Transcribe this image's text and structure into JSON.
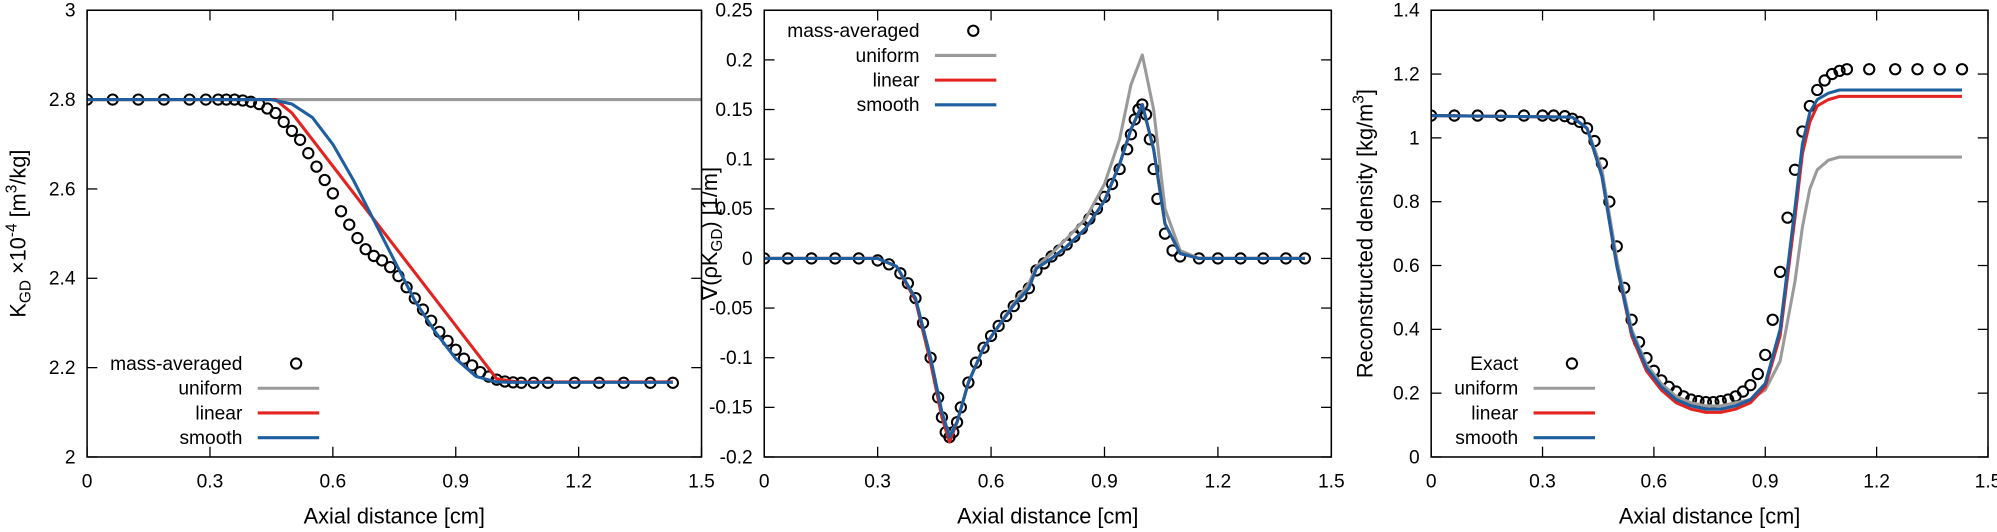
{
  "chart_data": [
    {
      "type": "line",
      "xlabel": "Axial distance [cm]",
      "ylabel": [
        {
          "text": "K"
        },
        {
          "text": "GD",
          "shift": "sub"
        },
        {
          "text": " ×10"
        },
        {
          "text": "-4",
          "shift": "sup"
        },
        {
          "text": " [m"
        },
        {
          "text": "3",
          "shift": "sup"
        },
        {
          "text": "/kg]"
        }
      ],
      "xlim": [
        0,
        1.5
      ],
      "xticks": [
        0,
        0.3,
        0.6,
        0.9,
        1.2,
        1.5
      ],
      "ylim": [
        2,
        3
      ],
      "yticks": [
        2,
        2.2,
        2.4,
        2.6,
        2.8,
        3
      ],
      "legend": "bottom-left",
      "series": [
        {
          "name": "mass-averaged",
          "style": "markers",
          "color": "#000000",
          "x": [
            0,
            0.0625,
            0.125,
            0.1875,
            0.25,
            0.29,
            0.32,
            0.34,
            0.36,
            0.38,
            0.4,
            0.42,
            0.44,
            0.46,
            0.48,
            0.5,
            0.52,
            0.54,
            0.56,
            0.58,
            0.6,
            0.62,
            0.64,
            0.66,
            0.68,
            0.7,
            0.72,
            0.74,
            0.76,
            0.78,
            0.8,
            0.82,
            0.84,
            0.86,
            0.88,
            0.9,
            0.92,
            0.94,
            0.96,
            0.98,
            1.0,
            1.02,
            1.04,
            1.06,
            1.09,
            1.125,
            1.19,
            1.25,
            1.31,
            1.375,
            1.43
          ],
          "values": [
            2.8,
            2.8,
            2.8,
            2.8,
            2.8,
            2.8,
            2.8,
            2.8,
            2.8,
            2.798,
            2.795,
            2.79,
            2.78,
            2.77,
            2.75,
            2.73,
            2.71,
            2.68,
            2.65,
            2.62,
            2.59,
            2.55,
            2.52,
            2.49,
            2.465,
            2.45,
            2.44,
            2.425,
            2.405,
            2.38,
            2.355,
            2.33,
            2.305,
            2.28,
            2.26,
            2.24,
            2.22,
            2.205,
            2.19,
            2.18,
            2.173,
            2.169,
            2.167,
            2.166,
            2.166,
            2.166,
            2.166,
            2.166,
            2.166,
            2.166,
            2.166
          ]
        },
        {
          "name": "uniform",
          "style": "line",
          "color": "#9a9a9a",
          "x": [
            0,
            1.5
          ],
          "values": [
            2.8,
            2.8
          ]
        },
        {
          "name": "linear",
          "style": "line",
          "color": "#e3231f",
          "x": [
            0,
            0.46,
            0.5,
            1.0,
            1.05,
            1.43
          ],
          "values": [
            2.8,
            2.8,
            2.77,
            2.175,
            2.168,
            2.168
          ]
        },
        {
          "name": "smooth",
          "style": "line",
          "color": "#1f5f9f",
          "x": [
            0,
            0.45,
            0.5,
            0.55,
            0.6,
            0.65,
            0.7,
            0.75,
            0.8,
            0.85,
            0.9,
            0.95,
            1.0,
            1.05,
            1.43
          ],
          "values": [
            2.8,
            2.8,
            2.79,
            2.76,
            2.7,
            2.62,
            2.53,
            2.44,
            2.35,
            2.28,
            2.22,
            2.18,
            2.168,
            2.167,
            2.167
          ]
        }
      ]
    },
    {
      "type": "line",
      "xlabel": "Axial distance [cm]",
      "ylabel": [
        {
          "text": "∇(ρK"
        },
        {
          "text": "GD",
          "shift": "sub"
        },
        {
          "text": ") [1/m]"
        }
      ],
      "xlim": [
        0,
        1.5
      ],
      "xticks": [
        0,
        0.3,
        0.6,
        0.9,
        1.2,
        1.5
      ],
      "ylim": [
        -0.2,
        0.25
      ],
      "yticks": [
        -0.2,
        -0.15,
        -0.1,
        -0.05,
        0,
        0.05,
        0.1,
        0.15,
        0.2,
        0.25
      ],
      "legend": "top-left",
      "series": [
        {
          "name": "mass-averaged",
          "style": "markers",
          "color": "#000000",
          "x": [
            0,
            0.0625,
            0.125,
            0.1875,
            0.25,
            0.3,
            0.33,
            0.36,
            0.38,
            0.4,
            0.42,
            0.44,
            0.46,
            0.47,
            0.48,
            0.49,
            0.5,
            0.51,
            0.52,
            0.54,
            0.56,
            0.58,
            0.6,
            0.62,
            0.64,
            0.66,
            0.68,
            0.7,
            0.72,
            0.74,
            0.76,
            0.78,
            0.8,
            0.82,
            0.84,
            0.86,
            0.88,
            0.9,
            0.92,
            0.94,
            0.96,
            0.97,
            0.98,
            0.99,
            1.0,
            1.01,
            1.02,
            1.03,
            1.04,
            1.06,
            1.08,
            1.1,
            1.15,
            1.2,
            1.26,
            1.32,
            1.38,
            1.43
          ],
          "values": [
            0,
            0,
            0,
            0,
            0,
            -0.002,
            -0.006,
            -0.015,
            -0.025,
            -0.04,
            -0.065,
            -0.1,
            -0.14,
            -0.16,
            -0.175,
            -0.18,
            -0.175,
            -0.165,
            -0.15,
            -0.125,
            -0.105,
            -0.09,
            -0.078,
            -0.068,
            -0.058,
            -0.048,
            -0.038,
            -0.03,
            -0.012,
            -0.005,
            0.002,
            0.008,
            0.014,
            0.022,
            0.03,
            0.04,
            0.05,
            0.062,
            0.075,
            0.09,
            0.11,
            0.125,
            0.14,
            0.15,
            0.155,
            0.145,
            0.12,
            0.09,
            0.06,
            0.025,
            0.008,
            0.002,
            0,
            0,
            0,
            0,
            0,
            0
          ]
        },
        {
          "name": "uniform",
          "style": "line",
          "color": "#9a9a9a",
          "x": [
            0,
            0.3,
            0.35,
            0.4,
            0.44,
            0.47,
            0.49,
            0.51,
            0.54,
            0.58,
            0.62,
            0.66,
            0.7,
            0.72,
            0.76,
            0.8,
            0.85,
            0.9,
            0.94,
            0.97,
            1.0,
            1.03,
            1.06,
            1.1,
            1.15,
            1.43
          ],
          "values": [
            0,
            0,
            -0.008,
            -0.04,
            -0.1,
            -0.155,
            -0.178,
            -0.165,
            -0.125,
            -0.09,
            -0.068,
            -0.045,
            -0.025,
            -0.008,
            0.005,
            0.02,
            0.04,
            0.075,
            0.12,
            0.175,
            0.205,
            0.15,
            0.05,
            0.008,
            0,
            0
          ]
        },
        {
          "name": "linear",
          "style": "line",
          "color": "#e3231f",
          "x": [
            0,
            0.3,
            0.35,
            0.4,
            0.44,
            0.47,
            0.49,
            0.51,
            0.54,
            0.58,
            0.62,
            0.66,
            0.7,
            0.72,
            0.76,
            0.8,
            0.85,
            0.9,
            0.94,
            0.97,
            1.0,
            1.03,
            1.06,
            1.1,
            1.15,
            1.43
          ],
          "values": [
            0,
            0,
            -0.008,
            -0.042,
            -0.105,
            -0.16,
            -0.185,
            -0.165,
            -0.125,
            -0.09,
            -0.068,
            -0.047,
            -0.03,
            -0.01,
            0.0,
            0.012,
            0.03,
            0.058,
            0.095,
            0.13,
            0.155,
            0.11,
            0.035,
            0.005,
            0,
            0
          ]
        },
        {
          "name": "smooth",
          "style": "line",
          "color": "#1f5f9f",
          "x": [
            0,
            0.3,
            0.35,
            0.4,
            0.44,
            0.47,
            0.49,
            0.51,
            0.54,
            0.58,
            0.62,
            0.66,
            0.7,
            0.72,
            0.76,
            0.8,
            0.85,
            0.9,
            0.94,
            0.97,
            1.0,
            1.03,
            1.06,
            1.1,
            1.15,
            1.43
          ],
          "values": [
            0,
            0,
            -0.008,
            -0.04,
            -0.1,
            -0.155,
            -0.18,
            -0.165,
            -0.125,
            -0.09,
            -0.068,
            -0.047,
            -0.03,
            -0.01,
            0.0,
            0.012,
            0.03,
            0.058,
            0.095,
            0.13,
            0.155,
            0.11,
            0.035,
            0.005,
            0,
            0
          ]
        }
      ]
    },
    {
      "type": "line",
      "xlabel": "Axial distance [cm]",
      "ylabel": [
        {
          "text": "Reconstructed density [kg/m"
        },
        {
          "text": "3",
          "shift": "sup"
        },
        {
          "text": "]"
        }
      ],
      "xlim": [
        0,
        1.5
      ],
      "xticks": [
        0,
        0.3,
        0.6,
        0.9,
        1.2,
        1.5
      ],
      "ylim": [
        0,
        1.4
      ],
      "yticks": [
        0,
        0.2,
        0.4,
        0.6,
        0.8,
        1,
        1.2,
        1.4
      ],
      "legend": "bottom-left",
      "series": [
        {
          "name": "Exact",
          "style": "markers",
          "color": "#000000",
          "x": [
            0,
            0.0625,
            0.125,
            0.1875,
            0.25,
            0.3,
            0.33,
            0.36,
            0.38,
            0.4,
            0.42,
            0.44,
            0.46,
            0.48,
            0.5,
            0.52,
            0.54,
            0.56,
            0.58,
            0.6,
            0.62,
            0.64,
            0.66,
            0.68,
            0.7,
            0.72,
            0.74,
            0.76,
            0.78,
            0.8,
            0.82,
            0.84,
            0.86,
            0.88,
            0.9,
            0.92,
            0.94,
            0.96,
            0.98,
            1.0,
            1.02,
            1.04,
            1.06,
            1.08,
            1.1,
            1.12,
            1.18,
            1.25,
            1.31,
            1.37,
            1.43
          ],
          "values": [
            1.07,
            1.07,
            1.07,
            1.07,
            1.07,
            1.07,
            1.07,
            1.068,
            1.06,
            1.05,
            1.03,
            0.99,
            0.92,
            0.8,
            0.66,
            0.53,
            0.43,
            0.36,
            0.31,
            0.27,
            0.24,
            0.22,
            0.205,
            0.19,
            0.18,
            0.175,
            0.172,
            0.172,
            0.175,
            0.18,
            0.19,
            0.205,
            0.225,
            0.26,
            0.32,
            0.43,
            0.58,
            0.75,
            0.9,
            1.02,
            1.1,
            1.15,
            1.18,
            1.2,
            1.21,
            1.215,
            1.215,
            1.215,
            1.215,
            1.215,
            1.215
          ]
        },
        {
          "name": "uniform",
          "style": "line",
          "color": "#9a9a9a",
          "x": [
            0,
            0.38,
            0.42,
            0.46,
            0.5,
            0.54,
            0.58,
            0.62,
            0.66,
            0.7,
            0.74,
            0.78,
            0.82,
            0.86,
            0.9,
            0.94,
            0.98,
            1.0,
            1.02,
            1.04,
            1.07,
            1.1,
            1.15,
            1.43
          ],
          "values": [
            1.07,
            1.065,
            1.03,
            0.9,
            0.62,
            0.4,
            0.29,
            0.23,
            0.19,
            0.17,
            0.16,
            0.16,
            0.17,
            0.18,
            0.21,
            0.3,
            0.55,
            0.72,
            0.84,
            0.9,
            0.93,
            0.94,
            0.94,
            0.94
          ]
        },
        {
          "name": "linear",
          "style": "line",
          "color": "#e3231f",
          "x": [
            0,
            0.38,
            0.42,
            0.46,
            0.5,
            0.54,
            0.58,
            0.62,
            0.66,
            0.7,
            0.74,
            0.78,
            0.82,
            0.86,
            0.9,
            0.94,
            0.98,
            1.0,
            1.02,
            1.04,
            1.07,
            1.1,
            1.15,
            1.43
          ],
          "values": [
            1.07,
            1.065,
            1.03,
            0.88,
            0.6,
            0.38,
            0.27,
            0.21,
            0.17,
            0.15,
            0.14,
            0.14,
            0.15,
            0.17,
            0.22,
            0.38,
            0.75,
            0.95,
            1.05,
            1.1,
            1.12,
            1.13,
            1.13,
            1.13
          ]
        },
        {
          "name": "smooth",
          "style": "line",
          "color": "#1f5f9f",
          "x": [
            0,
            0.38,
            0.42,
            0.46,
            0.5,
            0.54,
            0.58,
            0.62,
            0.66,
            0.7,
            0.74,
            0.78,
            0.82,
            0.86,
            0.9,
            0.94,
            0.98,
            1.0,
            1.02,
            1.04,
            1.07,
            1.1,
            1.15,
            1.43
          ],
          "values": [
            1.07,
            1.065,
            1.03,
            0.88,
            0.6,
            0.39,
            0.28,
            0.22,
            0.18,
            0.16,
            0.15,
            0.15,
            0.16,
            0.18,
            0.23,
            0.4,
            0.78,
            0.98,
            1.08,
            1.12,
            1.14,
            1.15,
            1.15,
            1.15
          ]
        }
      ]
    }
  ]
}
